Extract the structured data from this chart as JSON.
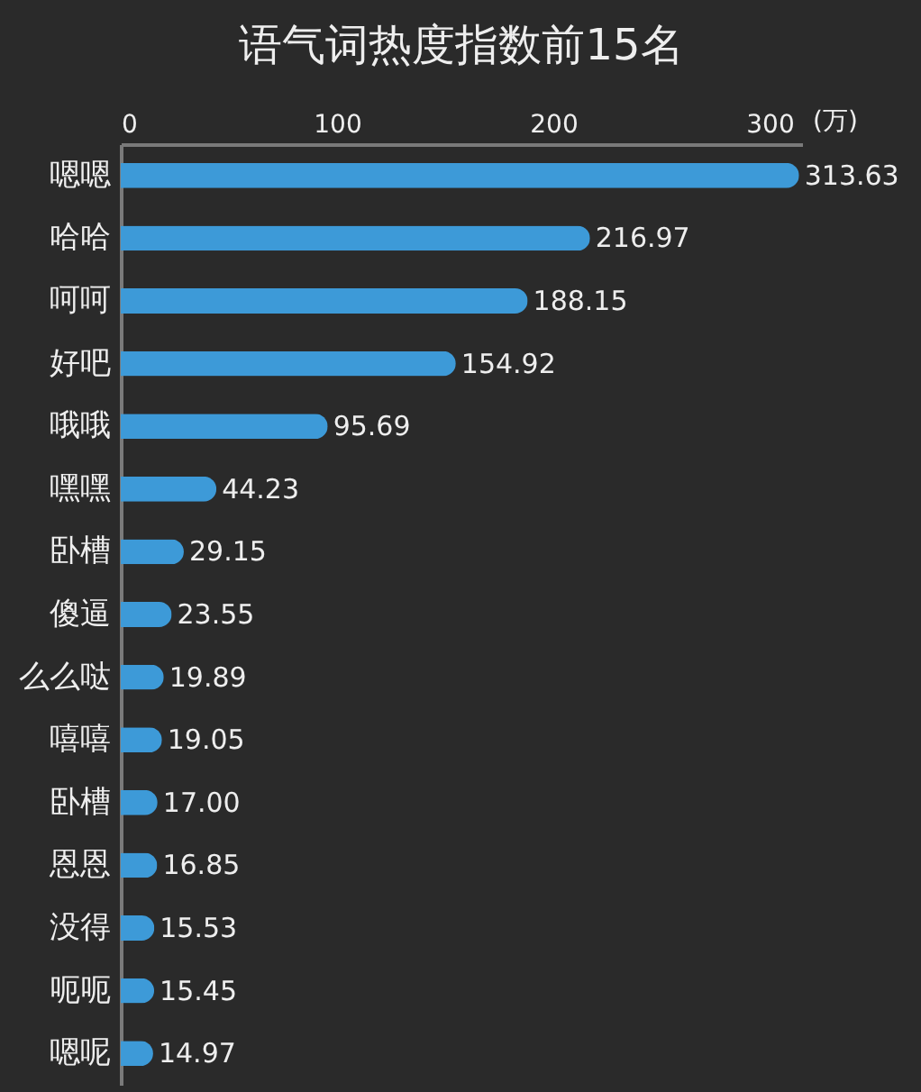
{
  "chart_data": {
    "type": "bar",
    "orientation": "horizontal",
    "title": "语气词热度指数前15名",
    "xlabel": "(万)",
    "categories": [
      "嗯嗯",
      "哈哈",
      "呵呵",
      "好吧",
      "哦哦",
      "嘿嘿",
      "卧槽",
      "傻逼",
      "么么哒",
      "嘻嘻",
      "卧槽",
      "恩恩",
      "没得",
      "呃呃",
      "嗯呢"
    ],
    "values": [
      313.63,
      216.97,
      188.15,
      154.92,
      95.69,
      44.23,
      29.15,
      23.55,
      19.89,
      19.05,
      17.0,
      16.85,
      15.53,
      15.45,
      14.97
    ],
    "value_labels": [
      "313.63",
      "216.97",
      "188.15",
      "154.92",
      "95.69",
      "44.23",
      "29.15",
      "23.55",
      "19.89",
      "19.05",
      "17.00",
      "16.85",
      "15.53",
      "15.45",
      "14.97"
    ],
    "color": "#3d9ad8",
    "xlim": [
      0,
      315
    ],
    "xticks": [
      0,
      100,
      200,
      300
    ],
    "grid": false
  }
}
